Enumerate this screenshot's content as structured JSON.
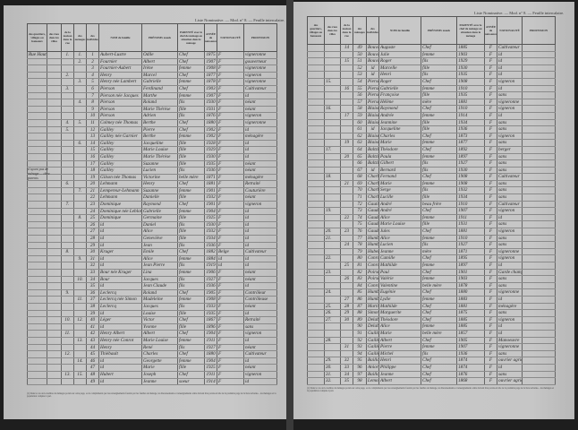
{
  "running_head": "Liste Nominative. — Mod. n° 8. — Feuille intercalaire.",
  "headers": {
    "designation": "DÉSIGNATION",
    "designation_sub1": "des quartiers, villages ou hameaux",
    "designation_sub2": "des rues dans les villes",
    "numeros": "NUMÉROS",
    "numeros_sub1": "de la maison dans la rue",
    "numeros_sub2": "des ménages",
    "numeros_sub3": "des individus",
    "nom": "NOM de famille",
    "prenoms": "PRÉNOMS usuels",
    "parente": "PARENTÉ avec le chef de ménage ou situation dans le ménage",
    "annee": "ANNÉE de naissance",
    "nationalite": "NATIONALITÉ",
    "profession": "PROFESSION"
  },
  "left_page": {
    "margin_note": "n'ayant pas de ménage ... chez parents",
    "rows": [
      [
        "Rue Haute",
        "1.",
        "1.",
        "1",
        "Aubert-Lustre",
        "Odile",
        "Chef",
        "1875",
        "F",
        "vigneronne"
      ],
      [
        "",
        "",
        "2.",
        "2",
        "Fournier",
        "Albert",
        "Chef",
        "1907",
        "F",
        "gouverneur"
      ],
      [
        "",
        "",
        "",
        "3",
        "Fournier-Aubert",
        "Irène",
        "femme",
        "1908",
        "F",
        "vigneronne"
      ],
      [
        "",
        "2.",
        "",
        "4",
        "Henry",
        "Marcel",
        "Chef",
        "1877",
        "F",
        "vigneron"
      ],
      [
        "",
        "",
        "3.",
        "5",
        "Henry née Lambert",
        "Gabrielle",
        "femme",
        "1878",
        "F",
        "vigneronne"
      ],
      [
        "",
        "3.",
        "",
        "6",
        "Pierson",
        "Ferdinand",
        "Chef",
        "1903",
        "F",
        "Cultivateur"
      ],
      [
        "",
        "",
        "",
        "7",
        "Pierson née Jacques",
        "Marthe",
        "femme",
        "1907",
        "F",
        "id"
      ],
      [
        "",
        "",
        "4.",
        "8",
        "Pierson",
        "Roland",
        "fils",
        "1930",
        "F",
        "néant"
      ],
      [
        "",
        "",
        "",
        "9",
        "Pierson",
        "Marie Thérèse",
        "fille",
        "1931",
        "F",
        "néant"
      ],
      [
        "",
        "",
        "",
        "10",
        "Pierson",
        "Adrien",
        "fils",
        "1876",
        "F",
        "vigneron"
      ],
      [
        "",
        "4.",
        "5.",
        "11",
        "Colmey née Thomas",
        "Berthe",
        "Chef",
        "1880",
        "F",
        "vigneronne"
      ],
      [
        "",
        "5.",
        "",
        "12",
        "Gailley",
        "Pierre",
        "Chef",
        "1902",
        "F",
        "id"
      ],
      [
        "",
        "",
        "",
        "13",
        "Gailley née Garnier",
        "Berthe",
        "femme",
        "1902",
        "F",
        "ménagère"
      ],
      [
        "",
        "",
        "6.",
        "14",
        "Gailley",
        "Jacqueline",
        "fille",
        "1928",
        "F",
        "id"
      ],
      [
        "",
        "",
        "",
        "15",
        "Gailley",
        "Marie Louise",
        "fille",
        "1929",
        "F",
        "id"
      ],
      [
        "",
        "",
        "",
        "16",
        "Gailley",
        "Marie Thérèse",
        "fille",
        "1930",
        "F",
        "id"
      ],
      [
        "",
        "",
        "",
        "17",
        "Gailley",
        "Suzanne",
        "fille",
        "1935",
        "F",
        "néant"
      ],
      [
        "",
        "",
        "",
        "18",
        "Gailley",
        "Lucien",
        "fils",
        "1936",
        "F",
        "néant"
      ],
      [
        "",
        "",
        "",
        "19",
        "Gilson née Thomas",
        "Victorine",
        "belle mère",
        "1871",
        "F",
        "ménagère"
      ],
      [
        "",
        "6.",
        "",
        "20",
        "Lehmann",
        "Henry",
        "Chef",
        "1881",
        "F",
        "Retraité"
      ],
      [
        "",
        "",
        "7.",
        "21",
        "Lempereur-Lehmann",
        "Suzanne",
        "femme",
        "1901",
        "F",
        "Couturière"
      ],
      [
        "",
        "",
        "",
        "22",
        "Lehmann",
        "Danielle",
        "fille",
        "1932",
        "F",
        "néant"
      ],
      [
        "",
        "7.",
        "",
        "23",
        "Dominique",
        "Raymond",
        "Chef",
        "1901",
        "F",
        "vigneron"
      ],
      [
        "",
        "",
        "",
        "24",
        "Dominique née Leblond",
        "Gabrielle",
        "femme",
        "1904",
        "F",
        "id"
      ],
      [
        "",
        "",
        "8.",
        "25",
        "Dominique",
        "Germaine",
        "fille",
        "1925",
        "F",
        "id"
      ],
      [
        "",
        "",
        "",
        "26",
        "id",
        "Daniel",
        "fils",
        "1930",
        "F",
        "id"
      ],
      [
        "",
        "",
        "",
        "27",
        "id",
        "Alice",
        "fille",
        "1932",
        "F",
        "id"
      ],
      [
        "",
        "",
        "",
        "28",
        "id",
        "Geneviève",
        "fille",
        "1934",
        "F",
        "id"
      ],
      [
        "",
        "",
        "",
        "29",
        "id",
        "Jean",
        "fils",
        "1936",
        "F",
        "id"
      ],
      [
        "",
        "8.",
        "",
        "30",
        "Kruger",
        "Emile",
        "Chef",
        "1882",
        "Belge",
        "Cultivateur"
      ],
      [
        "",
        "",
        "9.",
        "31",
        "id",
        "Alice",
        "femme",
        "1884",
        "id",
        "id"
      ],
      [
        "",
        "",
        "",
        "32",
        "id",
        "Jean Pierre",
        "fils",
        "1919",
        "id",
        "id"
      ],
      [
        "",
        "",
        "",
        "33",
        "Bour née Kruger",
        "Lina",
        "femme",
        "1906",
        "F",
        "néant"
      ],
      [
        "",
        "",
        "10.",
        "34",
        "Bour",
        "Jacques",
        "fils",
        "1927",
        "F",
        "néant"
      ],
      [
        "",
        "",
        "",
        "35",
        "id",
        "Jean Claude",
        "fils",
        "1936",
        "F",
        "id"
      ],
      [
        "",
        "9.",
        "",
        "36",
        "Leclercq",
        "Roland",
        "Chef",
        "1905",
        "F",
        "Contrôleur"
      ],
      [
        "",
        "",
        "11.",
        "37",
        "Leclercq née Simon",
        "Madeleine",
        "femme",
        "1908",
        "F",
        "Contrôleuse"
      ],
      [
        "",
        "",
        "",
        "38",
        "Leclercq",
        "Jacques",
        "fils",
        "1933",
        "F",
        "néant"
      ],
      [
        "",
        "",
        "",
        "39",
        "id",
        "Louise",
        "fille",
        "1935",
        "F",
        "id"
      ],
      [
        "",
        "10.",
        "12.",
        "40",
        "Léger",
        "Victor",
        "Chef",
        "1867",
        "F",
        "Retraité"
      ],
      [
        "",
        "",
        "",
        "41",
        "id",
        "Yvonne",
        "fille",
        "1896",
        "F",
        "sans"
      ],
      [
        "",
        "11.",
        "",
        "42",
        "Henry Albert",
        "Albert",
        "Chef",
        "1904",
        "F",
        "vigneron"
      ],
      [
        "",
        "",
        "13.",
        "43",
        "Henry née Conrot",
        "Marie Louise",
        "femme",
        "1911",
        "F",
        "id"
      ],
      [
        "",
        "",
        "",
        "44",
        "Henry",
        "René",
        "fils",
        "1927",
        "F",
        "néant"
      ],
      [
        "",
        "12.",
        "",
        "45",
        "Thiébault",
        "Charles",
        "Chef",
        "1880",
        "F",
        "Cultivateur"
      ],
      [
        "",
        "",
        "14.",
        "46",
        "id",
        "Georgette",
        "femme",
        "1904",
        "F",
        "id"
      ],
      [
        "",
        "",
        "",
        "47",
        "id",
        "Marie",
        "fille",
        "1925",
        "F",
        "néant"
      ],
      [
        "",
        "13.",
        "15.",
        "48",
        "Hubert",
        "Joseph",
        "Chef",
        "1911",
        "F",
        "vigneron"
      ],
      [
        "",
        "",
        "",
        "49",
        "id",
        "Jeanne",
        "soeur",
        "1914",
        "F",
        "id"
      ]
    ],
    "footnote": "(1) Dans le cas où le nombre de ménages portés sur cette page, ou le compléments par les renseignements fournis par les feuilles de ménage, les Recensements et renseignements omis doivent être portés en tête de la première page de la liste suivante... les ménages et la population comptée à part."
  },
  "right_page": {
    "rows": [
      [
        "",
        "14",
        "49",
        "Bouvart",
        "Auguste",
        "Chef",
        "1885",
        "F",
        "Cultivateur"
      ],
      [
        "",
        "",
        "50",
        "Bouvart née Bouvart",
        "Julie",
        "femme",
        "1903",
        "F",
        "id"
      ],
      [
        "",
        "15",
        "51",
        "Bouvart",
        "Roger",
        "fils",
        "1929",
        "F",
        "id"
      ],
      [
        "",
        "",
        "52",
        "id",
        "Marcelle",
        "fille",
        "1930",
        "F",
        "id"
      ],
      [
        "",
        "",
        "53",
        "id",
        "Henri",
        "fils",
        "1935",
        "F",
        "id"
      ],
      [
        "15.",
        "",
        "54",
        "Pierson",
        "Roger",
        "Chef",
        "1908",
        "F",
        "vigneron"
      ],
      [
        "",
        "16",
        "55",
        "Pierson née Bertrand",
        "Gabrielle",
        "femme",
        "1910",
        "F",
        "id"
      ],
      [
        "",
        "",
        "56",
        "Pierson",
        "Françoise",
        "fille",
        "1935",
        "F",
        "sans"
      ],
      [
        "",
        "",
        "57",
        "Pierson Hubert",
        "Hélène",
        "mère",
        "1881",
        "F",
        "vigneronne"
      ],
      [
        "16.",
        "",
        "58",
        "Blaise",
        "Raymond",
        "Chef",
        "1910",
        "F",
        "vigneron"
      ],
      [
        "",
        "17",
        "59",
        "Blaise née Dumont",
        "Andrée",
        "femme",
        "1914",
        "F",
        "id"
      ],
      [
        "",
        "",
        "60",
        "Blaise",
        "Jeannine",
        "fille",
        "1934",
        "F",
        "sans"
      ],
      [
        "",
        "",
        "61",
        "id",
        "Jacqueline",
        "fille",
        "1936",
        "F",
        "sans"
      ],
      [
        "",
        "",
        "62",
        "Blaise",
        "Charles",
        "Chef",
        "1873",
        "F",
        "vigneron"
      ],
      [
        "",
        "19",
        "63",
        "Blaise Gauthier",
        "Marie",
        "femme",
        "1877",
        "F",
        "sans"
      ],
      [
        "17.",
        "",
        "64",
        "Baltzinger",
        "Théodore",
        "Chef",
        "1892",
        "F",
        "berger"
      ],
      [
        "",
        "20",
        "65",
        "Baltzinger née Dumont",
        "Paula",
        "femme",
        "1897",
        "F",
        "sans"
      ],
      [
        "",
        "",
        "66",
        "Baltzinger",
        "Gilbert",
        "fils",
        "1927",
        "F",
        "sans"
      ],
      [
        "",
        "",
        "67",
        "id",
        "Bernard",
        "fils",
        "1930",
        "F",
        "sans"
      ],
      [
        "18.",
        "",
        "68",
        "Charbit",
        "Fernand",
        "Chef",
        "1908",
        "F",
        "Cultivateur"
      ],
      [
        "",
        "21",
        "69",
        "Charbit née Gautier",
        "Marie",
        "femme",
        "1908",
        "F",
        "sans"
      ],
      [
        "",
        "",
        "70",
        "Charbit",
        "Serge",
        "fils",
        "1932",
        "F",
        "sans"
      ],
      [
        "",
        "",
        "71",
        "Charbit",
        "Lucille",
        "fille",
        "1934",
        "F",
        "sans"
      ],
      [
        "",
        "",
        "72",
        "Gautier",
        "André",
        "beau frère",
        "1910",
        "F",
        "Cultivateur"
      ],
      [
        "19.",
        "",
        "73",
        "Gaudard",
        "André",
        "Chef",
        "1907",
        "F",
        "vigneron"
      ],
      [
        "",
        "22",
        "74",
        "Gaudard née Henrion",
        "Alice",
        "femme",
        "1911",
        "F",
        "id"
      ],
      [
        "",
        "",
        "75",
        "Gaudard",
        "Marie Louise",
        "fille",
        "1931",
        "F",
        "sans"
      ],
      [
        "20.",
        "23",
        "76",
        "Gaudard",
        "Jules",
        "Chef",
        "1881",
        "F",
        "vigneron"
      ],
      [
        "21.",
        "",
        "77",
        "Humbert née Hubert",
        "Alice",
        "femme",
        "1910",
        "F",
        "sans"
      ],
      [
        "",
        "24",
        "78",
        "Humbert",
        "Lucien",
        "fils",
        "1927",
        "F",
        "sans"
      ],
      [
        "",
        "",
        "79",
        "Hubert née Masson",
        "Jeanne",
        "mère",
        "1871",
        "F",
        "vigneronne"
      ],
      [
        "22.",
        "",
        "80",
        "Conrotte",
        "Camille",
        "Chef",
        "1895",
        "F",
        "vigneron"
      ],
      [
        "",
        "25",
        "81",
        "Conrotte Georges",
        "Mathilde",
        "femme",
        "1897",
        "F",
        "id"
      ],
      [
        "23.",
        "",
        "82",
        "Poirson",
        "Paul",
        "Chef",
        "1901",
        "F",
        "Garde champêtre"
      ],
      [
        "",
        "26",
        "83",
        "Poirson Conrot",
        "Valérie",
        "femme",
        "1903",
        "F",
        "sans"
      ],
      [
        "",
        "",
        "84",
        "Conrot Georges",
        "Valentine",
        "belle mère",
        "1878",
        "F",
        "sans"
      ],
      [
        "24.",
        "",
        "85",
        "Humbert",
        "Eugénie",
        "Chef",
        "1880",
        "F",
        "vigneronne"
      ],
      [
        "",
        "27",
        "86",
        "Humbert Mathieu",
        "Lydie",
        "femme",
        "1883",
        "F",
        "id"
      ],
      [
        "25.",
        "28",
        "87",
        "Martin Olivier",
        "Mathilde",
        "Chef",
        "1881",
        "F",
        "ménagère"
      ],
      [
        "26.",
        "29",
        "88",
        "Simon Pierre",
        "Marguerite",
        "Chef",
        "1875",
        "F",
        "sans"
      ],
      [
        "27.",
        "30",
        "89",
        "Delahaye",
        "Théodore",
        "Chef",
        "1885",
        "F",
        "vigneron"
      ],
      [
        "",
        "",
        "90",
        "Delahaye Guillot",
        "Alice",
        "femme",
        "1885",
        "F",
        "id"
      ],
      [
        "",
        "",
        "91",
        "Guillot Delahaye",
        "Marie",
        "belle mère",
        "1857",
        "F",
        "id"
      ],
      [
        "28.",
        "",
        "92",
        "Gailley",
        "Albert",
        "Chef",
        "1905",
        "F",
        "Manoeuvre"
      ],
      [
        "",
        "31",
        "93",
        "Gailley Humbert",
        "Pierre",
        "femme",
        "1907",
        "F",
        "vigneronne"
      ],
      [
        "",
        "",
        "94",
        "Gailley",
        "Michel",
        "fils",
        "1936",
        "F",
        "sans"
      ],
      [
        "29.",
        "32",
        "95",
        "Baillon",
        "Henri",
        "Chef",
        "1874",
        "F",
        "ouvrier agricole"
      ],
      [
        "30.",
        "33",
        "96",
        "Aniort",
        "Philippe",
        "Chef",
        "1874",
        "F",
        "id"
      ],
      [
        "31.",
        "34",
        "97",
        "Baillon",
        "Jeanne",
        "Chef",
        "1876",
        "F",
        "sans"
      ],
      [
        "32.",
        "35",
        "98",
        "Lemoine",
        "Albert",
        "Chef",
        "1868",
        "F",
        "ouvrier agricole"
      ]
    ],
    "footnote": "(1) Dans le cas où le nombre de ménages portés sur cette page, ou le compléments par les renseignements fournis par les feuilles de ménage, les Recensements et renseignements omis doivent être portés en tête de la première page de la liste suivante... les ménages et la population comptée à part."
  }
}
